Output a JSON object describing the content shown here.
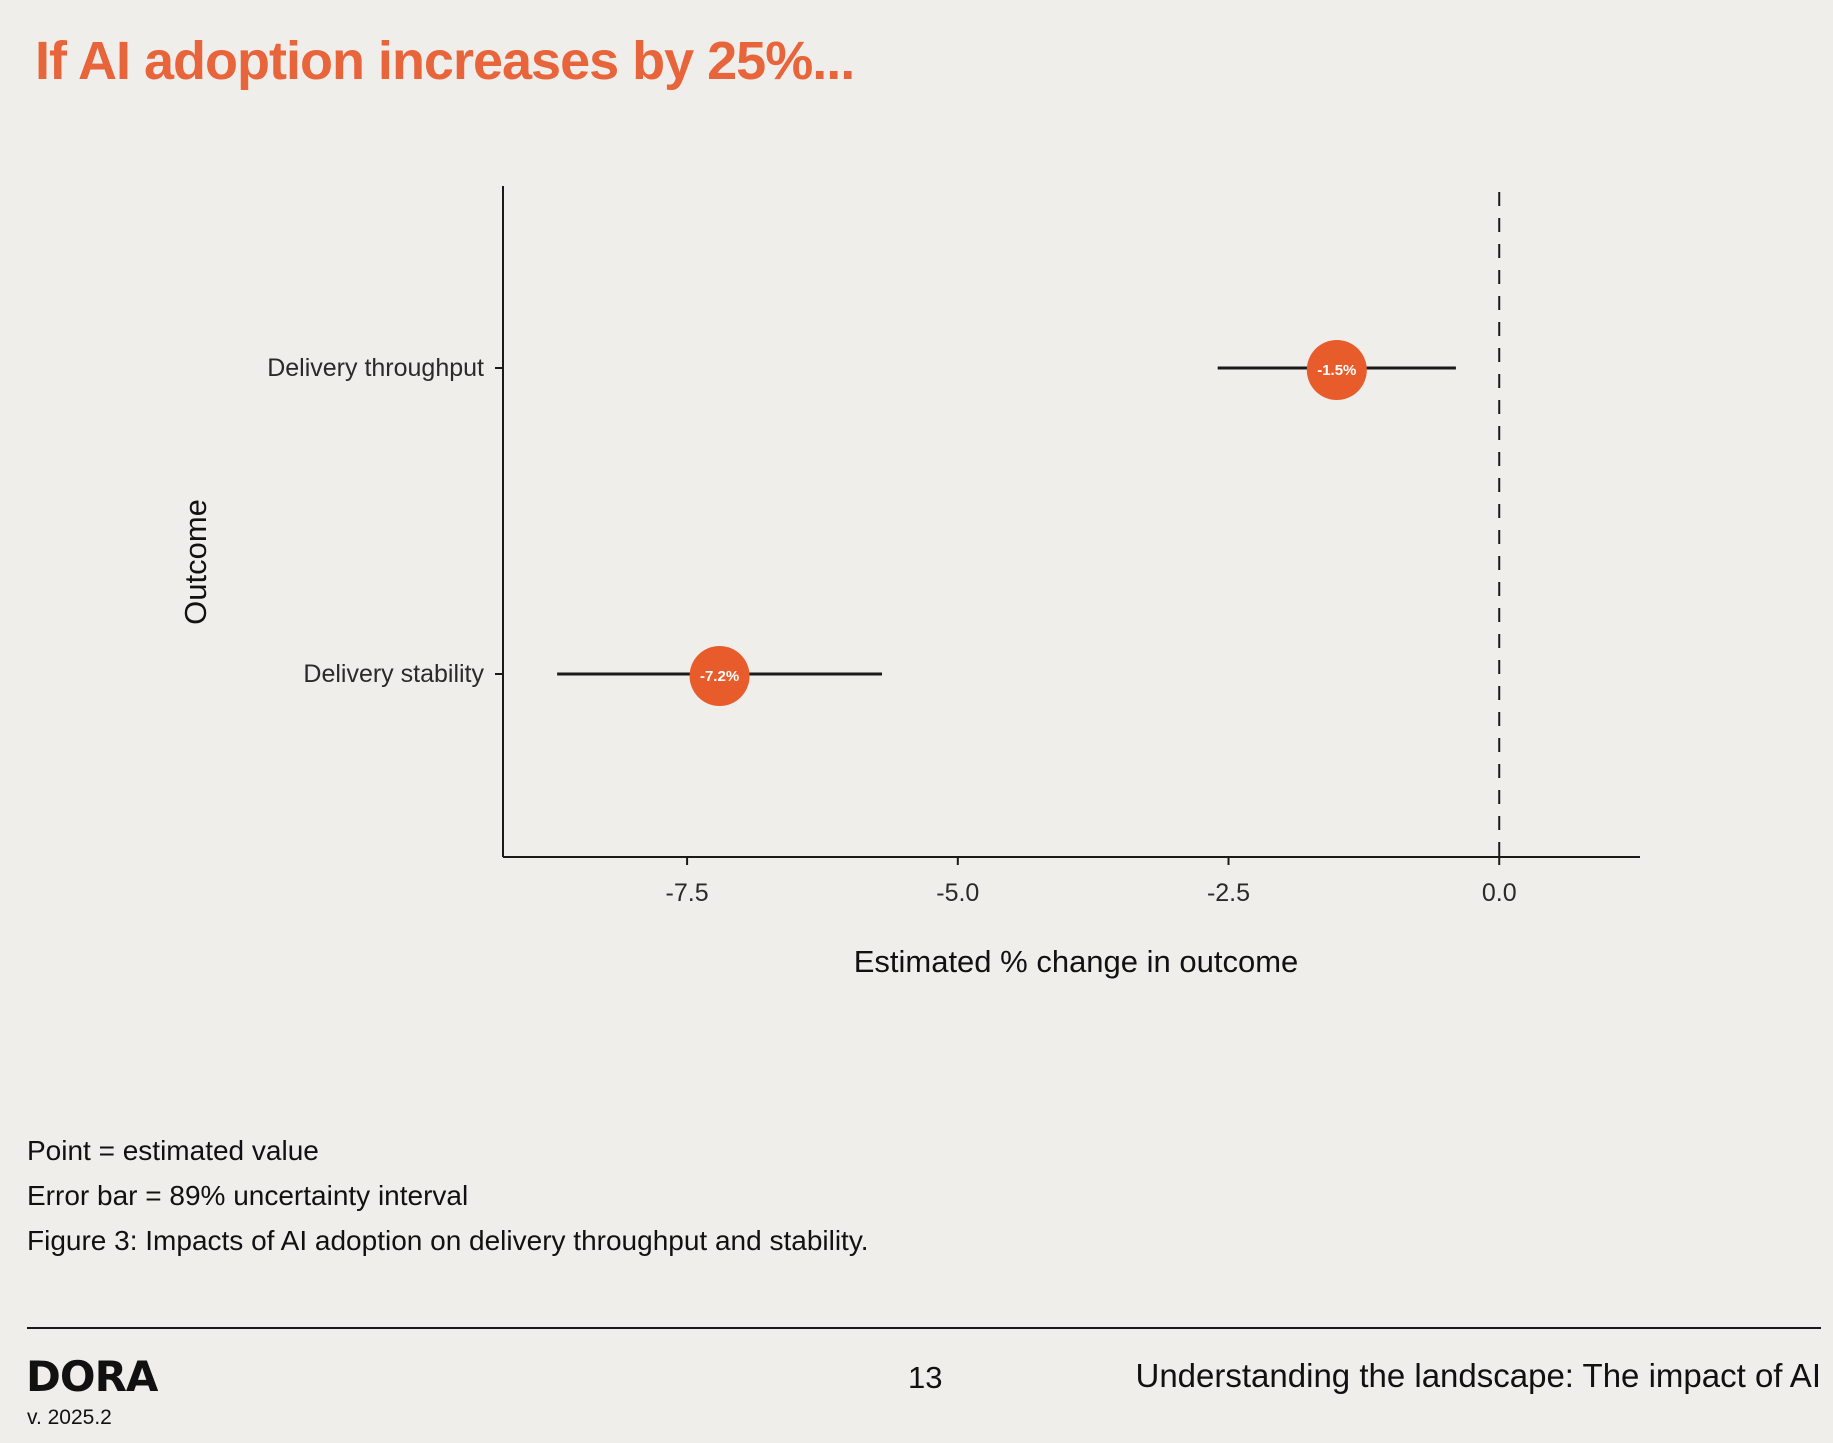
{
  "page": {
    "headline": "If AI adoption increases by 25%...",
    "notes": [
      "Point = estimated value",
      "Error bar = 89% uncertainty interval",
      "Figure 3: Impacts of AI adoption on delivery throughput and stability."
    ],
    "footer": {
      "logo": "DORA",
      "version": "v. 2025.2",
      "page_number": "13",
      "section_title": "Understanding the landscape: The impact of AI"
    }
  },
  "chart_data": {
    "type": "scatter",
    "subtype": "point-range",
    "xlabel": "Estimated % change in outcome",
    "ylabel": "Outcome",
    "xlim": [
      -9.2,
      1.3
    ],
    "x_ticks": [
      -7.5,
      -5.0,
      -2.5,
      0.0
    ],
    "x_tick_labels": [
      "-7.5",
      "-5.0",
      "-2.5",
      "0.0"
    ],
    "reference_line_x": 0,
    "categories": [
      "Delivery throughput",
      "Delivery stability"
    ],
    "points": [
      {
        "category": "Delivery throughput",
        "value": -1.5,
        "lower": -2.6,
        "upper": -0.4,
        "label": "-1.5%"
      },
      {
        "category": "Delivery stability",
        "value": -7.2,
        "lower": -8.7,
        "upper": -5.7,
        "label": "-7.2%"
      }
    ],
    "grid": false,
    "point_color": "#e85c2c",
    "interval": "89% uncertainty interval"
  }
}
